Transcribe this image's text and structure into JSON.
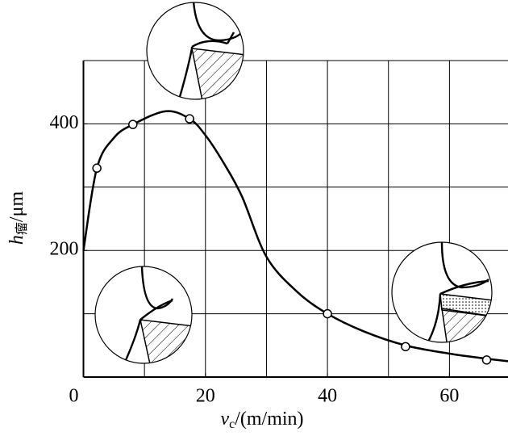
{
  "chart_data": {
    "type": "line",
    "x_label": {
      "symbol": "v",
      "subscript": "c",
      "unit": "/(m/min)"
    },
    "y_label": {
      "symbol": "h",
      "subscript": "瘤",
      "unit": "/μm"
    },
    "xlim": [
      0,
      69.6
    ],
    "ylim": [
      0,
      500
    ],
    "xticks": [
      0,
      20,
      40,
      60
    ],
    "yticks": [
      200,
      400
    ],
    "xgrid": [
      10,
      20,
      30,
      40,
      50,
      60
    ],
    "ygrid": [
      100,
      200,
      300,
      400,
      500
    ],
    "grid": true,
    "series": [
      {
        "color": "#000000",
        "x": [
          0,
          2.2,
          5,
          8.1,
          13.5,
          17.4,
          20,
          23,
          26,
          30,
          35,
          40,
          46,
          52.8,
          60,
          66.1,
          69.6
        ],
        "values": [
          200,
          330,
          378,
          399,
          420,
          408,
          382,
          338,
          285,
          190,
          135,
          100,
          72,
          50,
          37,
          29,
          25
        ]
      },
      {
        "color": "#000000",
        "marker": "circle",
        "x": [
          2.2,
          8.1,
          17.4,
          40,
          52.8,
          66.1
        ],
        "values": [
          330,
          399,
          408,
          100,
          48,
          27
        ]
      }
    ]
  }
}
